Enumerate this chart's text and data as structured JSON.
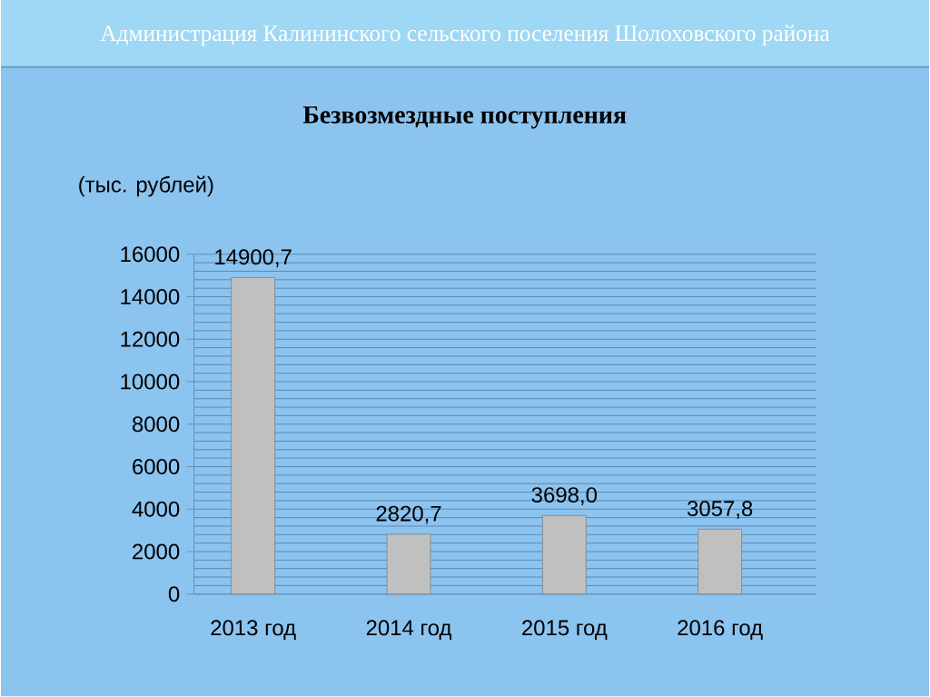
{
  "chart_data": {
    "type": "bar",
    "title": "Безвозмездные поступления",
    "ylabel": "(тыс. рублей)",
    "annotations": [
      "Администрация Калининского сельского поселения Шолоховского района"
    ],
    "categories": [
      "2013 год",
      "2014 год",
      "2015 год",
      "2016 год"
    ],
    "values": [
      14900.7,
      2820.7,
      3698.0,
      3057.8
    ],
    "value_labels": [
      "14900,7",
      "2820,7",
      "3698,0",
      "3057,8"
    ],
    "color": "#c0c0c0",
    "ylim": [
      0,
      16000
    ],
    "yticks": [
      0,
      {
        "value": 400,
        "label": null
      },
      {
        "value": 800,
        "label": null
      },
      {
        "value": 1200,
        "label": null
      },
      {
        "value": 1600,
        "label": null
      },
      2000,
      {
        "value": 2400,
        "label": null
      },
      {
        "value": 2800,
        "label": null
      },
      {
        "value": 3200,
        "label": null
      },
      {
        "value": 3600,
        "label": null
      },
      4000,
      {
        "value": 4400,
        "label": null
      },
      {
        "value": 4800,
        "label": null
      },
      {
        "value": 5200,
        "label": null
      },
      {
        "value": 5600,
        "label": null
      },
      6000,
      {
        "value": 6400,
        "label": null
      },
      {
        "value": 6800,
        "label": null
      },
      {
        "value": 7200,
        "label": null
      },
      {
        "value": 7600,
        "label": null
      },
      8000,
      {
        "value": 8400,
        "label": null
      },
      {
        "value": 8800,
        "label": null
      },
      {
        "value": 9200,
        "label": null
      },
      {
        "value": 9600,
        "label": null
      },
      10000,
      {
        "value": 10400,
        "label": null
      },
      {
        "value": 10800,
        "label": null
      },
      {
        "value": 11200,
        "label": null
      },
      {
        "value": 11600,
        "label": null
      },
      12000,
      {
        "value": 12400,
        "label": null
      },
      {
        "value": 12800,
        "label": null
      },
      {
        "value": 13200,
        "label": null
      },
      {
        "value": 13600,
        "label": null
      },
      14000,
      {
        "value": 14400,
        "label": null
      },
      {
        "value": 14800,
        "label": null
      },
      {
        "value": 15200,
        "label": null
      },
      {
        "value": 15600,
        "label": null
      },
      16000
    ],
    "grid": "y"
  }
}
